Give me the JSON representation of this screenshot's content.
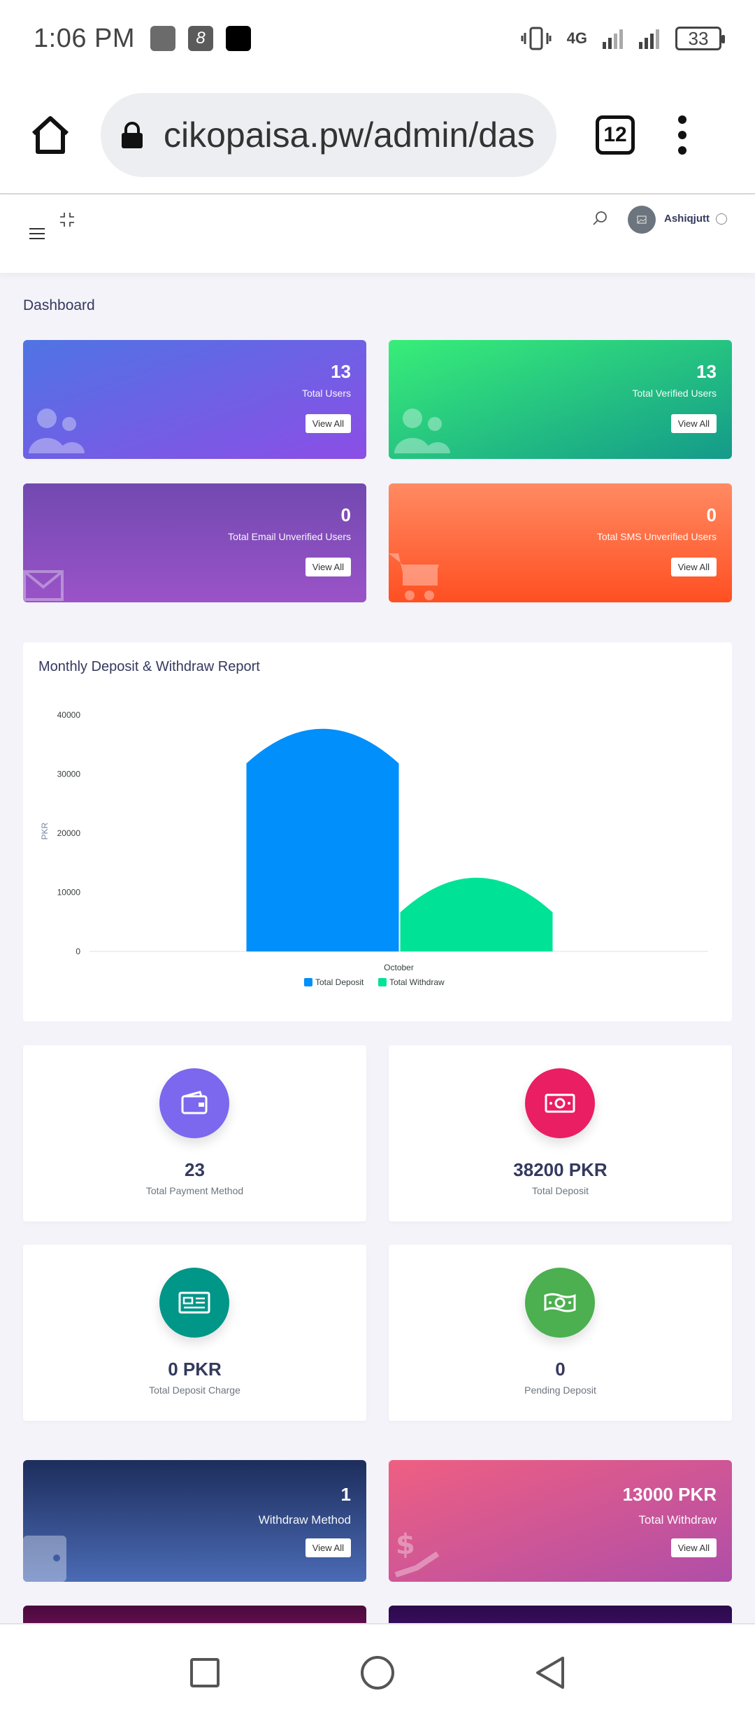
{
  "status_bar": {
    "time": "1:06 PM",
    "network": "4G",
    "battery": "33"
  },
  "browser": {
    "url": "cikopaisa.pw/admin/das",
    "tab_count": "12"
  },
  "header": {
    "username": "Ashiqjutt"
  },
  "page": {
    "title": "Dashboard"
  },
  "top_cards": [
    {
      "value": "13",
      "label": "Total Users",
      "button": "View All",
      "icon": "users-icon"
    },
    {
      "value": "13",
      "label": "Total Verified Users",
      "button": "View All",
      "icon": "users-icon"
    },
    {
      "value": "0",
      "label": "Total Email Unverified Users",
      "button": "View All",
      "icon": "envelope-icon"
    },
    {
      "value": "0",
      "label": "Total SMS Unverified Users",
      "button": "View All",
      "icon": "cart-icon"
    }
  ],
  "chart_data": {
    "type": "bar",
    "title": "Monthly Deposit & Withdraw Report",
    "categories": [
      "October"
    ],
    "series": [
      {
        "name": "Total Deposit",
        "values": [
          38200
        ],
        "color": "#008ffb"
      },
      {
        "name": "Total Withdraw",
        "values": [
          13000
        ],
        "color": "#00e396"
      }
    ],
    "xlabel": "",
    "ylabel": "PKR",
    "ylim": [
      0,
      40000
    ],
    "yticks": [
      0,
      10000,
      20000,
      30000,
      40000
    ],
    "legend": "bottom",
    "grid": false
  },
  "stat_cards": [
    {
      "value": "23",
      "label": "Total Payment Method",
      "color": "#7b68ee",
      "icon": "wallet-icon"
    },
    {
      "value": "38200 PKR",
      "label": "Total Deposit",
      "color": "#e91e63",
      "icon": "money-icon"
    },
    {
      "value": "0 PKR",
      "label": "Total Deposit Charge",
      "color": "#009688",
      "icon": "card-icon"
    },
    {
      "value": "0",
      "label": "Pending Deposit",
      "color": "#4caf50",
      "icon": "money-icon"
    }
  ],
  "withdraw_cards": [
    {
      "value": "1",
      "label": "Withdraw Method",
      "button": "View All",
      "icon": "wallet-icon"
    },
    {
      "value": "13000 PKR",
      "label": "Total Withdraw",
      "button": "View All",
      "icon": "dollar-hand-icon"
    }
  ]
}
